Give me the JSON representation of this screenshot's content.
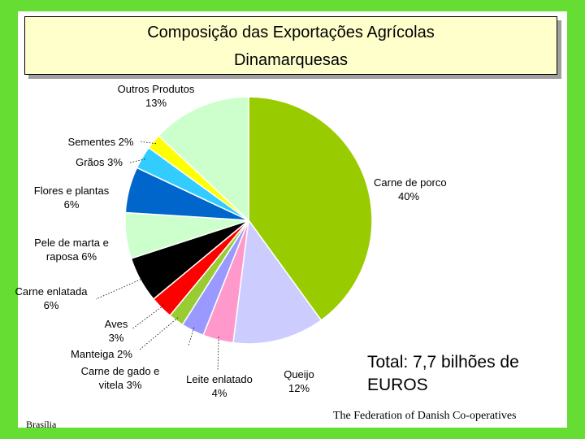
{
  "title": {
    "line1": "Composição das Exportações Agrícolas",
    "line2": "Dinamarquesas"
  },
  "total_text_line1": "Total: 7,7 bilhões de",
  "total_text_line2": "EUROS",
  "footer_left": "Brasília",
  "footer_right": "The Federation of Danish Co-operatives",
  "chart_data": {
    "type": "pie",
    "title": "Composição das Exportações Agrícolas Dinamarquesas",
    "slices": [
      {
        "name": "Carne de porco",
        "value": 40,
        "label": [
          "Carne de porco",
          "40%"
        ],
        "color": "#99cc00"
      },
      {
        "name": "Queijo",
        "value": 12,
        "label": [
          "Queijo",
          "12%"
        ],
        "color": "#ccccff"
      },
      {
        "name": "Leite enlatado",
        "value": 4,
        "label": [
          "Leite enlatado",
          "4%"
        ],
        "color": "#ff99cc"
      },
      {
        "name": "Carne de gado e vitela",
        "value": 3,
        "label": [
          "Carne de gado e",
          "vitela 3%"
        ],
        "color": "#9999ff"
      },
      {
        "name": "Manteiga",
        "value": 2,
        "label": [
          "Manteiga 2%"
        ],
        "color": "#99cc33"
      },
      {
        "name": "Aves",
        "value": 3,
        "label": [
          "Aves",
          "3%"
        ],
        "color": "#ff0000"
      },
      {
        "name": "Carne enlatada",
        "value": 6,
        "label": [
          "Carne enlatada",
          "6%"
        ],
        "color": "#000000"
      },
      {
        "name": "Pele de marta e raposa",
        "value": 6,
        "label": [
          "Pele de marta e",
          "raposa  6%"
        ],
        "color": "#ccffcc"
      },
      {
        "name": "Flores e plantas",
        "value": 6,
        "label": [
          "Flores e plantas",
          "6%"
        ],
        "color": "#0066cc"
      },
      {
        "name": "Grãos",
        "value": 3,
        "label": [
          "Grãos 3%"
        ],
        "color": "#33ccff"
      },
      {
        "name": "Sementes",
        "value": 2,
        "label": [
          "Sementes 2%"
        ],
        "color": "#ffff00"
      },
      {
        "name": "Outros Produtos",
        "value": 13,
        "label": [
          "Outros Produtos",
          "13%"
        ],
        "color": "#ccffcc"
      }
    ],
    "start": "12 o'clock",
    "direction": "clockwise"
  }
}
